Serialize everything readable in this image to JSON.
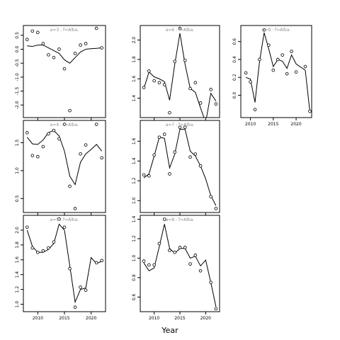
{
  "chart_data": {
    "type": "scatter",
    "xlabel": "Year",
    "panels": [
      {
        "title": "a=3  :  f=Alba.",
        "ylim": [
          -2.45,
          0.85
        ],
        "yticks": [
          -2.0,
          -1.5,
          -1.0,
          -0.5,
          0.0,
          0.5
        ],
        "ylabels": [
          "-2.0",
          "-1.5",
          "-1.0",
          "-0.5",
          "0.0",
          "0.5"
        ],
        "points": [
          [
            2008,
            0.35
          ],
          [
            2009,
            0.65
          ],
          [
            2010,
            0.6
          ],
          [
            2011,
            0.2
          ],
          [
            2012,
            -0.2
          ],
          [
            2013,
            -0.3
          ],
          [
            2014,
            0.0
          ],
          [
            2015,
            -0.7
          ],
          [
            2016,
            -2.2
          ],
          [
            2017,
            -0.15
          ],
          [
            2018,
            0.15
          ],
          [
            2019,
            0.2
          ],
          [
            2021,
            0.75
          ],
          [
            2022,
            0.05
          ]
        ],
        "fitted": [
          [
            2008,
            0.12
          ],
          [
            2009,
            0.1
          ],
          [
            2010,
            0.15
          ],
          [
            2011,
            0.15
          ],
          [
            2012,
            0.05
          ],
          [
            2013,
            -0.05
          ],
          [
            2014,
            -0.15
          ],
          [
            2015,
            -0.38
          ],
          [
            2016,
            -0.5
          ],
          [
            2017,
            -0.3
          ],
          [
            2018,
            -0.1
          ],
          [
            2019,
            0.0
          ],
          [
            2020,
            0.02
          ],
          [
            2021,
            0.03
          ],
          [
            2022,
            0.05
          ]
        ]
      },
      {
        "title": "a=6  :  f=Alba.",
        "ylim": [
          1.2,
          2.15
        ],
        "yticks": [
          1.4,
          1.6,
          1.8,
          2.0
        ],
        "ylabels": [
          "1.4",
          "1.6",
          "1.8",
          "2.0"
        ],
        "points": [
          [
            2008,
            1.51
          ],
          [
            2009,
            1.68
          ],
          [
            2010,
            1.58
          ],
          [
            2011,
            1.56
          ],
          [
            2012,
            1.54
          ],
          [
            2013,
            1.25
          ],
          [
            2014,
            1.78
          ],
          [
            2015,
            2.12
          ],
          [
            2016,
            1.79
          ],
          [
            2017,
            1.5
          ],
          [
            2018,
            1.56
          ],
          [
            2019,
            1.35
          ],
          [
            2021,
            1.49
          ],
          [
            2022,
            1.34
          ]
        ],
        "fitted": [
          [
            2008,
            1.5
          ],
          [
            2009,
            1.67
          ],
          [
            2010,
            1.62
          ],
          [
            2011,
            1.6
          ],
          [
            2012,
            1.57
          ],
          [
            2013,
            1.38
          ],
          [
            2014,
            1.75
          ],
          [
            2015,
            2.07
          ],
          [
            2016,
            1.75
          ],
          [
            2017,
            1.5
          ],
          [
            2018,
            1.46
          ],
          [
            2019,
            1.3
          ],
          [
            2020,
            1.15
          ],
          [
            2021,
            1.45
          ],
          [
            2022,
            1.37
          ]
        ]
      },
      {
        "title": "a=9  :  f=Alba.",
        "ylim": [
          -0.25,
          0.78
        ],
        "yticks": [
          0.0,
          0.2,
          0.4,
          0.6
        ],
        "ylabels": [
          "0.0",
          "0.2",
          "0.4",
          "0.6"
        ],
        "points": [
          [
            2009,
            0.25
          ],
          [
            2010,
            0.15
          ],
          [
            2011,
            -0.16
          ],
          [
            2012,
            0.4
          ],
          [
            2013,
            0.73
          ],
          [
            2014,
            0.56
          ],
          [
            2015,
            0.28
          ],
          [
            2016,
            0.4
          ],
          [
            2017,
            0.45
          ],
          [
            2018,
            0.24
          ],
          [
            2019,
            0.49
          ],
          [
            2020,
            0.26
          ],
          [
            2022,
            0.32
          ],
          [
            2023,
            -0.18
          ]
        ],
        "fitted": [
          [
            2009,
            0.2
          ],
          [
            2010,
            0.18
          ],
          [
            2011,
            -0.08
          ],
          [
            2012,
            0.38
          ],
          [
            2013,
            0.7
          ],
          [
            2014,
            0.52
          ],
          [
            2015,
            0.32
          ],
          [
            2016,
            0.4
          ],
          [
            2017,
            0.38
          ],
          [
            2018,
            0.3
          ],
          [
            2019,
            0.45
          ],
          [
            2020,
            0.35
          ],
          [
            2022,
            0.28
          ],
          [
            2023,
            -0.18
          ]
        ]
      },
      {
        "title": "a=4  :  f=Alba.",
        "ylim": [
          0.25,
          1.9
        ],
        "yticks": [
          0.5,
          1.0,
          1.5
        ],
        "ylabels": [
          "0.5",
          "1.0",
          "1.5"
        ],
        "points": [
          [
            2008,
            1.68
          ],
          [
            2009,
            1.27
          ],
          [
            2010,
            1.25
          ],
          [
            2011,
            1.43
          ],
          [
            2012,
            1.66
          ],
          [
            2013,
            1.72
          ],
          [
            2014,
            1.57
          ],
          [
            2015,
            1.83
          ],
          [
            2016,
            0.72
          ],
          [
            2017,
            0.32
          ],
          [
            2018,
            1.3
          ],
          [
            2019,
            1.46
          ],
          [
            2021,
            1.83
          ],
          [
            2022,
            1.23
          ]
        ],
        "fitted": [
          [
            2008,
            1.6
          ],
          [
            2009,
            1.48
          ],
          [
            2010,
            1.47
          ],
          [
            2011,
            1.55
          ],
          [
            2012,
            1.68
          ],
          [
            2013,
            1.72
          ],
          [
            2014,
            1.62
          ],
          [
            2015,
            1.35
          ],
          [
            2016,
            0.9
          ],
          [
            2017,
            0.75
          ],
          [
            2018,
            1.15
          ],
          [
            2019,
            1.3
          ],
          [
            2020,
            1.38
          ],
          [
            2021,
            1.47
          ],
          [
            2022,
            1.35
          ]
        ]
      },
      {
        "title": "a=7  :  f=Alba.",
        "ylim": [
          0.88,
          1.81
        ],
        "yticks": [
          1.0,
          1.2,
          1.4,
          1.6
        ],
        "ylabels": [
          "1.0",
          "1.2",
          "1.4",
          "1.6"
        ],
        "points": [
          [
            2008,
            1.26
          ],
          [
            2009,
            1.25
          ],
          [
            2010,
            1.46
          ],
          [
            2011,
            1.64
          ],
          [
            2012,
            1.67
          ],
          [
            2013,
            1.27
          ],
          [
            2014,
            1.49
          ],
          [
            2015,
            1.74
          ],
          [
            2016,
            1.74
          ],
          [
            2017,
            1.44
          ],
          [
            2018,
            1.47
          ],
          [
            2019,
            1.35
          ],
          [
            2021,
            1.04
          ],
          [
            2022,
            0.92
          ]
        ],
        "fitted": [
          [
            2008,
            1.23
          ],
          [
            2009,
            1.27
          ],
          [
            2010,
            1.45
          ],
          [
            2011,
            1.64
          ],
          [
            2012,
            1.63
          ],
          [
            2013,
            1.33
          ],
          [
            2014,
            1.47
          ],
          [
            2015,
            1.72
          ],
          [
            2016,
            1.72
          ],
          [
            2017,
            1.5
          ],
          [
            2018,
            1.45
          ],
          [
            2019,
            1.35
          ],
          [
            2020,
            1.22
          ],
          [
            2021,
            1.05
          ],
          [
            2022,
            0.95
          ]
        ]
      },
      {
        "title": "a=5  :  f=Alba.",
        "ylim": [
          0.9,
          2.2
        ],
        "yticks": [
          1.0,
          1.2,
          1.4,
          1.6,
          1.8,
          2.0
        ],
        "ylabels": [
          "1.0",
          "1.2",
          "1.4",
          "1.6",
          "1.8",
          "2.0"
        ],
        "points": [
          [
            2008,
            2.04
          ],
          [
            2009,
            1.76
          ],
          [
            2010,
            1.7
          ],
          [
            2011,
            1.72
          ],
          [
            2012,
            1.76
          ],
          [
            2013,
            1.84
          ],
          [
            2014,
            2.15
          ],
          [
            2015,
            2.04
          ],
          [
            2016,
            1.48
          ],
          [
            2017,
            0.96
          ],
          [
            2018,
            1.23
          ],
          [
            2019,
            1.19
          ],
          [
            2021,
            1.56
          ],
          [
            2022,
            1.59
          ]
        ],
        "fitted": [
          [
            2008,
            2.0
          ],
          [
            2009,
            1.78
          ],
          [
            2010,
            1.7
          ],
          [
            2011,
            1.7
          ],
          [
            2012,
            1.74
          ],
          [
            2013,
            1.82
          ],
          [
            2014,
            2.08
          ],
          [
            2015,
            2.0
          ],
          [
            2016,
            1.52
          ],
          [
            2017,
            1.03
          ],
          [
            2018,
            1.2
          ],
          [
            2019,
            1.22
          ],
          [
            2020,
            1.63
          ],
          [
            2021,
            1.55
          ],
          [
            2022,
            1.58
          ]
        ]
      },
      {
        "title": "a=8  :  f=Alba.",
        "ylim": [
          0.45,
          1.44
        ],
        "yticks": [
          0.6,
          0.8,
          1.0,
          1.2,
          1.4
        ],
        "ylabels": [
          "0.6",
          "0.8",
          "1.0",
          "1.2",
          "1.4"
        ],
        "points": [
          [
            2008,
            0.97
          ],
          [
            2009,
            0.93
          ],
          [
            2010,
            0.93
          ],
          [
            2011,
            1.15
          ],
          [
            2012,
            1.4
          ],
          [
            2013,
            1.08
          ],
          [
            2014,
            1.06
          ],
          [
            2015,
            1.11
          ],
          [
            2016,
            1.11
          ],
          [
            2017,
            0.94
          ],
          [
            2018,
            1.03
          ],
          [
            2019,
            0.87
          ],
          [
            2021,
            0.75
          ],
          [
            2022,
            0.48
          ]
        ],
        "fitted": [
          [
            2008,
            0.95
          ],
          [
            2009,
            0.87
          ],
          [
            2010,
            0.9
          ],
          [
            2011,
            1.12
          ],
          [
            2012,
            1.35
          ],
          [
            2013,
            1.1
          ],
          [
            2014,
            1.05
          ],
          [
            2015,
            1.1
          ],
          [
            2016,
            1.1
          ],
          [
            2017,
            1.0
          ],
          [
            2018,
            1.02
          ],
          [
            2019,
            0.92
          ],
          [
            2020,
            0.98
          ],
          [
            2021,
            0.75
          ],
          [
            2022,
            0.5
          ]
        ]
      }
    ],
    "xticks": [
      2010,
      2015,
      2020
    ],
    "xlim": [
      2007.3,
      2022.7
    ]
  }
}
